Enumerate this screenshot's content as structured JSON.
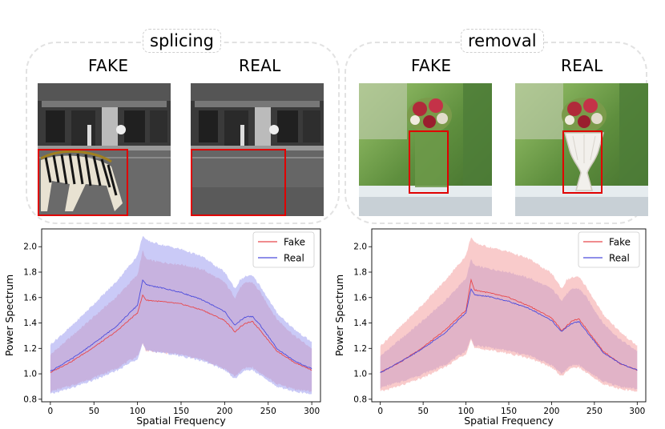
{
  "panels": [
    {
      "title": "splicing",
      "fake_label": "FAKE",
      "real_label": "REAL"
    },
    {
      "title": "removal",
      "fake_label": "FAKE",
      "real_label": "REAL"
    }
  ],
  "colors": {
    "fake": "#e8474b",
    "real": "#4c4cdc",
    "fake_band": "#f4a0a0",
    "real_band": "#9f9ff0"
  },
  "chart_data": [
    {
      "type": "line",
      "panel": "splicing",
      "xlabel": "Spatial Frequency",
      "ylabel": "Power Spectrum",
      "xlim": [
        -10,
        310
      ],
      "ylim": [
        0.78,
        2.14
      ],
      "xticks": [
        0,
        50,
        100,
        150,
        200,
        250,
        300
      ],
      "yticks": [
        0.8,
        1.0,
        1.2,
        1.4,
        1.6,
        1.8,
        2.0
      ],
      "legend": "top-right",
      "band_on_top": "Real",
      "x": [
        0,
        25,
        50,
        75,
        100,
        106,
        110,
        125,
        150,
        175,
        200,
        212,
        218,
        225,
        232,
        240,
        260,
        280,
        300
      ],
      "series": [
        {
          "name": "Fake",
          "mean": [
            1.01,
            1.1,
            1.21,
            1.33,
            1.48,
            1.62,
            1.58,
            1.57,
            1.55,
            1.5,
            1.42,
            1.33,
            1.37,
            1.4,
            1.41,
            1.35,
            1.18,
            1.09,
            1.03
          ],
          "lower": [
            0.86,
            0.91,
            0.97,
            1.04,
            1.14,
            1.24,
            1.18,
            1.17,
            1.15,
            1.11,
            1.04,
            0.98,
            1.02,
            1.05,
            1.05,
            1.01,
            0.92,
            0.88,
            0.86
          ],
          "upper": [
            1.15,
            1.3,
            1.45,
            1.6,
            1.78,
            1.97,
            1.9,
            1.88,
            1.86,
            1.82,
            1.72,
            1.6,
            1.68,
            1.72,
            1.72,
            1.65,
            1.43,
            1.3,
            1.2
          ]
        },
        {
          "name": "Real",
          "mean": [
            1.02,
            1.12,
            1.24,
            1.37,
            1.54,
            1.74,
            1.7,
            1.68,
            1.64,
            1.58,
            1.49,
            1.38,
            1.42,
            1.45,
            1.45,
            1.39,
            1.2,
            1.1,
            1.04
          ],
          "lower": [
            0.84,
            0.89,
            0.95,
            1.02,
            1.12,
            1.24,
            1.18,
            1.17,
            1.14,
            1.1,
            1.03,
            0.96,
            1.0,
            1.03,
            1.03,
            0.99,
            0.9,
            0.86,
            0.84
          ],
          "upper": [
            1.23,
            1.38,
            1.55,
            1.72,
            1.93,
            2.09,
            2.05,
            2.02,
            1.98,
            1.92,
            1.8,
            1.67,
            1.74,
            1.77,
            1.77,
            1.7,
            1.48,
            1.35,
            1.25
          ]
        }
      ]
    },
    {
      "type": "line",
      "panel": "removal",
      "xlabel": "Spatial Frequency",
      "ylabel": "Power Spectrum",
      "xlim": [
        -10,
        310
      ],
      "ylim": [
        0.78,
        2.14
      ],
      "xticks": [
        0,
        50,
        100,
        150,
        200,
        250,
        300
      ],
      "yticks": [
        0.8,
        1.0,
        1.2,
        1.4,
        1.6,
        1.8,
        2.0
      ],
      "legend": "top-right",
      "band_on_top": "Fake",
      "x": [
        0,
        25,
        50,
        75,
        100,
        106,
        110,
        125,
        150,
        175,
        200,
        212,
        218,
        225,
        232,
        240,
        260,
        280,
        300
      ],
      "series": [
        {
          "name": "Fake",
          "mean": [
            1.01,
            1.1,
            1.21,
            1.34,
            1.5,
            1.74,
            1.66,
            1.64,
            1.6,
            1.53,
            1.44,
            1.34,
            1.38,
            1.42,
            1.43,
            1.36,
            1.18,
            1.08,
            1.03
          ],
          "lower": [
            0.86,
            0.91,
            0.97,
            1.05,
            1.16,
            1.27,
            1.2,
            1.19,
            1.16,
            1.12,
            1.05,
            0.98,
            1.02,
            1.05,
            1.05,
            1.01,
            0.92,
            0.88,
            0.86
          ],
          "upper": [
            1.22,
            1.38,
            1.55,
            1.73,
            1.93,
            2.08,
            2.03,
            2.0,
            1.96,
            1.9,
            1.79,
            1.67,
            1.74,
            1.76,
            1.76,
            1.69,
            1.47,
            1.33,
            1.22
          ]
        },
        {
          "name": "Real",
          "mean": [
            1.01,
            1.1,
            1.2,
            1.32,
            1.48,
            1.67,
            1.62,
            1.61,
            1.57,
            1.51,
            1.42,
            1.33,
            1.37,
            1.4,
            1.41,
            1.34,
            1.17,
            1.08,
            1.03
          ],
          "lower": [
            0.89,
            0.94,
            1.0,
            1.07,
            1.18,
            1.28,
            1.22,
            1.21,
            1.18,
            1.14,
            1.07,
            1.0,
            1.04,
            1.07,
            1.07,
            1.03,
            0.94,
            0.9,
            0.88
          ],
          "upper": [
            1.14,
            1.28,
            1.42,
            1.57,
            1.75,
            1.9,
            1.85,
            1.83,
            1.8,
            1.75,
            1.67,
            1.58,
            1.63,
            1.67,
            1.67,
            1.61,
            1.4,
            1.27,
            1.18
          ]
        }
      ]
    }
  ]
}
